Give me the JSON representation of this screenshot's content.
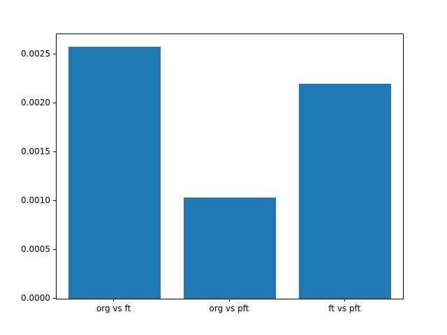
{
  "chart_data": {
    "type": "bar",
    "categories": [
      "org vs ft",
      "org vs pft",
      "ft vs pft"
    ],
    "values": [
      0.00258,
      0.00104,
      0.0022
    ],
    "title": "",
    "xlabel": "",
    "ylabel": "",
    "ylim": [
      0,
      0.00271
    ],
    "yticks": [
      0.0,
      0.0005,
      0.001,
      0.0015,
      0.002,
      0.0025
    ],
    "ytick_labels": [
      "0.0000",
      "0.0005",
      "0.0010",
      "0.0015",
      "0.0020",
      "0.0025"
    ],
    "bar_color": "#1f77b4",
    "bar_width_fraction": 0.8,
    "grid": false,
    "legend_position": "none",
    "background_color": "#ffffff",
    "axis_color": "#000000"
  }
}
